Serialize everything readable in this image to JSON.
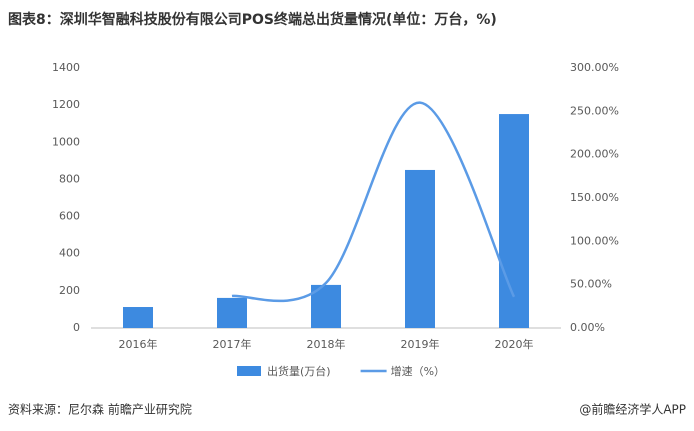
{
  "chart_data": {
    "type": "bar",
    "title": "图表8：深圳华智融科技股份有限公司POS终端总出货量情况(单位：万台，%)",
    "categories": [
      "2016年",
      "2017年",
      "2018年",
      "2019年",
      "2020年"
    ],
    "series": [
      {
        "name": "出货量(万台)",
        "type": "bar",
        "color": "#3d8ae0",
        "values": [
          113,
          162,
          232,
          851,
          1152
        ]
      },
      {
        "name": "增速（%）",
        "type": "line",
        "axis": "y2",
        "color": "#5b9be6",
        "values": [
          null,
          37,
          52,
          260,
          36
        ]
      }
    ],
    "ylim": [
      0,
      1400
    ],
    "yticks": [
      0,
      200,
      400,
      600,
      800,
      1000,
      1200,
      1400
    ],
    "y2lim": [
      0,
      300
    ],
    "y2ticks": [
      {
        "value": 0,
        "label": "0.00%"
      },
      {
        "value": 50,
        "label": "50.00%"
      },
      {
        "value": 100,
        "label": "100.00%"
      },
      {
        "value": 150,
        "label": "150.00%"
      },
      {
        "value": 200,
        "label": "200.00%"
      },
      {
        "value": 250,
        "label": "250.00%"
      },
      {
        "value": 300,
        "label": "300.00%"
      }
    ],
    "legend": "bottom",
    "source": "资料来源：尼尔森 前瞻产业研究院",
    "credit": "@前瞻经济学人APP"
  }
}
